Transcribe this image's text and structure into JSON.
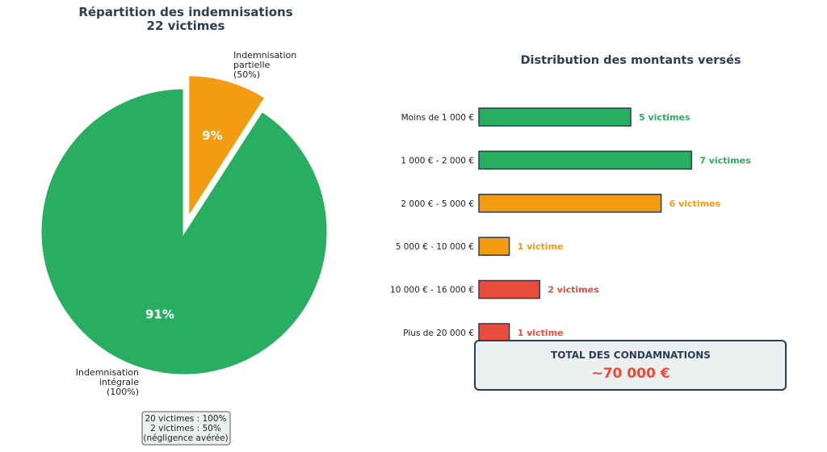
{
  "colors": {
    "green": "#27ae60",
    "orange": "#f39c12",
    "red": "#e74c3c",
    "dark": "#2c3e50",
    "box_bg": "#ecf0f1"
  },
  "chart_data": [
    {
      "type": "pie",
      "title": "Répartition des indemnisations",
      "subtitle": "22 victimes",
      "slices": [
        {
          "label": "Indemnisation partielle (50%)",
          "label_lines": [
            "Indemnisation",
            "partielle",
            "(50%)"
          ],
          "value": 2,
          "pct_label": "9%",
          "color": "#f39c12",
          "exploded": true
        },
        {
          "label": "Indemnisation intégrale (100%)",
          "label_lines": [
            "Indemnisation",
            "intégrale",
            "(100%)"
          ],
          "value": 20,
          "pct_label": "91%",
          "color": "#27ae60",
          "exploded": false
        }
      ],
      "annotation_lines": [
        "20 victimes : 100%",
        "2 victimes : 50%",
        "(négligence avérée)"
      ]
    },
    {
      "type": "bar",
      "orientation": "horizontal",
      "title": "Distribution des montants versés",
      "categories": [
        "Moins de 1 000 €",
        "1 000 € - 2 000 €",
        "2 000 € - 5 000 €",
        "5 000 € - 10 000 €",
        "10 000 € - 16 000 €",
        "Plus de 20 000 €"
      ],
      "values": [
        5,
        7,
        6,
        1,
        2,
        1
      ],
      "value_labels": [
        "5 victimes",
        "7 victimes",
        "6 victimes",
        "1 victime",
        "2 victimes",
        "1 victime"
      ],
      "colors": [
        "#27ae60",
        "#27ae60",
        "#f39c12",
        "#f39c12",
        "#e74c3c",
        "#e74c3c"
      ],
      "grid": false
    }
  ],
  "total_box": {
    "label": "TOTAL DES CONDAMNATIONS",
    "value": "~70 000 €"
  }
}
